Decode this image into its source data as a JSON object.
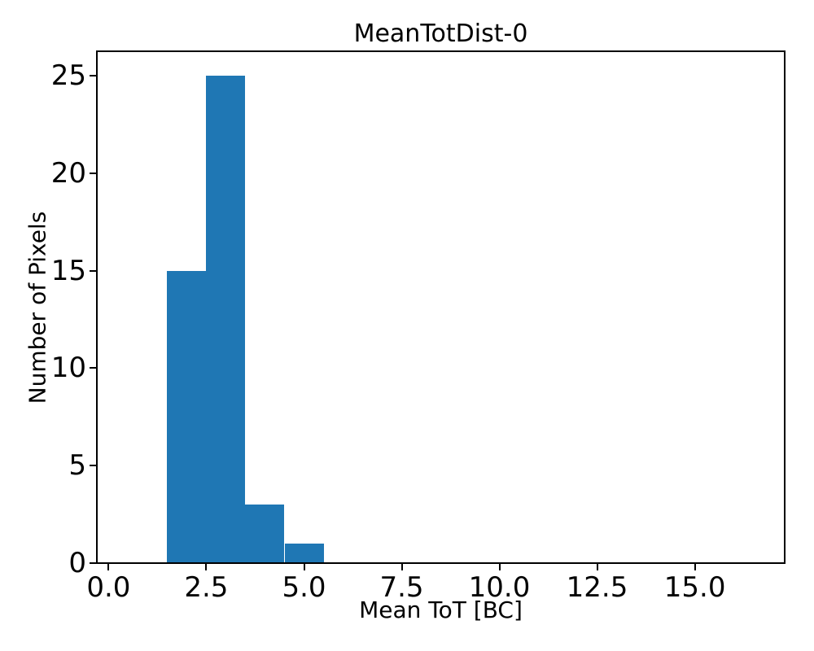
{
  "chart_data": {
    "type": "bar",
    "subtype": "histogram",
    "title": "MeanTotDist-0",
    "xlabel": "Mean ToT [BC]",
    "ylabel": "Number of Pixels",
    "bins": [
      {
        "x0": 1.5,
        "x1": 2.5,
        "count": 15
      },
      {
        "x0": 2.5,
        "x1": 3.5,
        "count": 25
      },
      {
        "x0": 3.5,
        "x1": 4.5,
        "count": 3
      },
      {
        "x0": 4.5,
        "x1": 5.5,
        "count": 1
      }
    ],
    "xticks": [
      0.0,
      2.5,
      5.0,
      7.5,
      10.0,
      12.5,
      15.0
    ],
    "xtick_labels": [
      "0.0",
      "2.5",
      "5.0",
      "7.5",
      "10.0",
      "12.5",
      "15.0"
    ],
    "yticks": [
      0,
      5,
      10,
      15,
      20,
      25
    ],
    "ytick_labels": [
      "0",
      "5",
      "10",
      "15",
      "20",
      "25"
    ],
    "xlim": [
      -0.3,
      17.3
    ],
    "ylim": [
      0,
      26.25
    ],
    "bar_color": "#1f77b4",
    "axis_color": "#000000",
    "background_color": "#ffffff",
    "grid": false,
    "legend": null
  }
}
